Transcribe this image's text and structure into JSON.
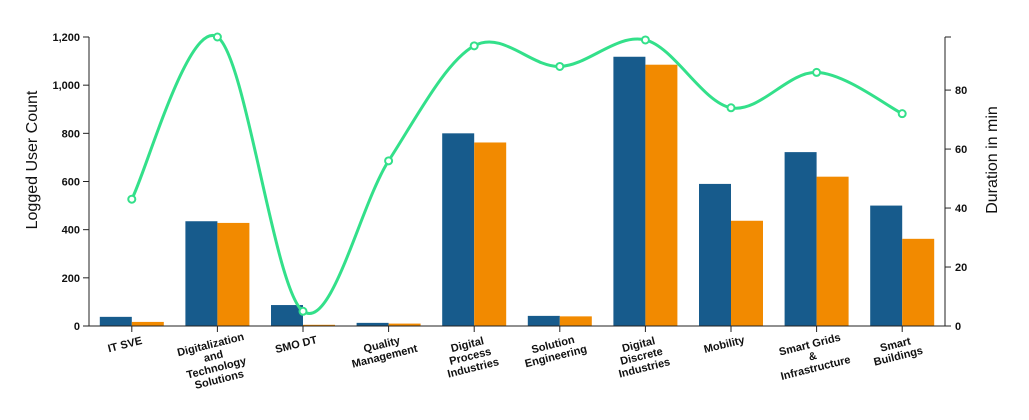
{
  "chart_data": {
    "type": "bar",
    "categories": [
      [
        "IT SVE"
      ],
      [
        "Digitalization",
        "and",
        "Technology",
        "Solutions"
      ],
      [
        "SMO DT"
      ],
      [
        "Quality",
        "Management"
      ],
      [
        "Digital",
        "Process",
        "Industries"
      ],
      [
        "Solution",
        "Engineering"
      ],
      [
        "Digital",
        "Discrete",
        "Industries"
      ],
      [
        "Mobility"
      ],
      [
        "Smart Grids",
        "&",
        "Infrastructure"
      ],
      [
        "Smart",
        "Buildings"
      ]
    ],
    "series": [
      {
        "type": "bar",
        "axis": "left",
        "color": "#175b8c",
        "values": [
          38,
          435,
          87,
          13,
          800,
          42,
          1118,
          590,
          722,
          500
        ]
      },
      {
        "type": "bar",
        "axis": "left",
        "color": "#f28a00",
        "values": [
          17,
          428,
          5,
          10,
          762,
          40,
          1085,
          437,
          620,
          362
        ]
      },
      {
        "type": "line",
        "axis": "right",
        "color": "#33e08a",
        "values": [
          43,
          98,
          5,
          56,
          95,
          88,
          97,
          74,
          86,
          72
        ]
      }
    ],
    "y_left": {
      "label": "Logged User Count",
      "min": 0,
      "max": 1200,
      "ticks": [
        0,
        200,
        400,
        600,
        800,
        1000,
        1200
      ],
      "tick_labels": [
        "0",
        "200",
        "400",
        "600",
        "800",
        "1,000",
        "1,200"
      ]
    },
    "y_right": {
      "label": "Duration in min",
      "min": 0,
      "max": 98,
      "ticks": [
        0,
        20,
        40,
        60,
        80
      ],
      "tick_labels": [
        "0",
        "20",
        "40",
        "60",
        "80"
      ]
    },
    "legend": "none",
    "grid": false
  }
}
